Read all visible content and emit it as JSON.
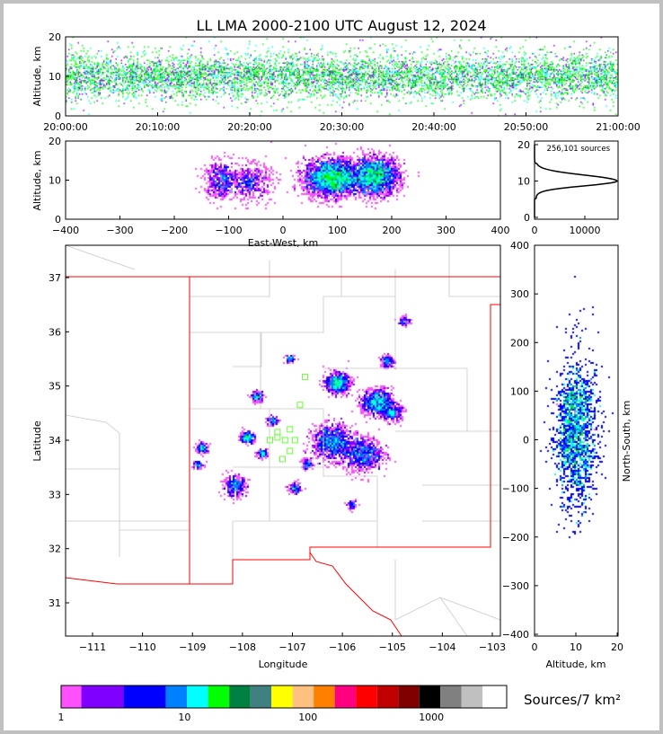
{
  "title": "LL LMA 2000-2100 UTC August 12, 2024",
  "colors": {
    "state_border": "#ff0000",
    "county_border": "#c8c8c8",
    "station": "#66ff33"
  },
  "chart_data": [
    {
      "type": "heatmap",
      "panel": "altitude-vs-time",
      "ylabel": "Altitude, km",
      "ylim": [
        0,
        20
      ],
      "yticks": [
        "0",
        "10",
        "20"
      ],
      "xticks": [
        "20:00:00",
        "20:10:00",
        "20:20:00",
        "20:30:00",
        "20:40:00",
        "20:50:00",
        "21:00:00"
      ],
      "band": {
        "center_km": 10,
        "spread_km": 3
      }
    },
    {
      "type": "heatmap",
      "panel": "altitude-vs-east-west",
      "xlabel": "East-West, km",
      "ylabel": "Altitude, km",
      "xlim": [
        -400,
        400
      ],
      "ylim": [
        0,
        20
      ],
      "xticks": [
        "−400",
        "−300",
        "−200",
        "−100",
        "0",
        "100",
        "200",
        "300",
        "400"
      ],
      "yticks": [
        "0",
        "10",
        "20"
      ],
      "clusters": [
        {
          "x": -115,
          "alt": 10,
          "sx": 15,
          "n": 500
        },
        {
          "x": -60,
          "alt": 9.5,
          "sx": 20,
          "n": 500
        },
        {
          "x": 90,
          "alt": 10.5,
          "sx": 25,
          "n": 2600
        },
        {
          "x": 170,
          "alt": 11,
          "sx": 22,
          "n": 2000
        }
      ]
    },
    {
      "type": "line",
      "panel": "altitude-histogram",
      "annotation": "256,101 sources",
      "xlim": [
        0,
        16500
      ],
      "ylim": [
        0,
        20
      ],
      "xticks": [
        "0",
        "10000"
      ],
      "yticks": [
        "0",
        "10",
        "20"
      ],
      "peak": {
        "altitude_km": 10,
        "count": 16000
      }
    },
    {
      "type": "heatmap",
      "panel": "plan-view-map",
      "xlabel": "Longitude",
      "ylabel": "Latitude",
      "xlim": [
        -111.54,
        -102.84
      ],
      "ylim": [
        30.38,
        37.6
      ],
      "xticks": [
        "−111",
        "−110",
        "−109",
        "−108",
        "−107",
        "−106",
        "−105",
        "−104",
        "−103"
      ],
      "yticks": [
        "31",
        "32",
        "33",
        "34",
        "35",
        "36",
        "37"
      ],
      "cells": [
        [
          -106.1,
          35.05,
          0.12,
          700
        ],
        [
          -105.3,
          34.7,
          0.15,
          900
        ],
        [
          -105.6,
          33.75,
          0.2,
          900
        ],
        [
          -106.2,
          33.95,
          0.2,
          1100
        ],
        [
          -107.9,
          34.05,
          0.07,
          250
        ],
        [
          -108.15,
          33.15,
          0.12,
          350
        ],
        [
          -108.8,
          33.85,
          0.06,
          150
        ],
        [
          -107.7,
          34.8,
          0.06,
          150
        ],
        [
          -106.95,
          33.1,
          0.06,
          120
        ],
        [
          -107.05,
          35.5,
          0.05,
          80
        ],
        [
          -105.1,
          35.45,
          0.07,
          150
        ],
        [
          -104.75,
          36.2,
          0.06,
          80
        ],
        [
          -105.8,
          32.8,
          0.05,
          60
        ],
        [
          -106.7,
          33.55,
          0.06,
          100
        ],
        [
          -107.6,
          33.75,
          0.05,
          120
        ],
        [
          -108.9,
          33.55,
          0.05,
          80
        ],
        [
          -107.4,
          34.35,
          0.06,
          100
        ],
        [
          -105.0,
          34.5,
          0.1,
          300
        ]
      ],
      "stations": [
        [
          -106.75,
          35.17
        ],
        [
          -106.85,
          34.65
        ],
        [
          -107.05,
          34.2
        ],
        [
          -107.3,
          34.05
        ],
        [
          -107.15,
          34.0
        ],
        [
          -107.2,
          33.65
        ],
        [
          -106.95,
          34.0
        ],
        [
          -107.45,
          34.0
        ],
        [
          -107.05,
          33.8
        ],
        [
          -107.3,
          34.15
        ]
      ]
    },
    {
      "type": "heatmap",
      "panel": "north-south-vs-altitude",
      "xlabel": "Altitude, km",
      "ylabel": "North-South, km",
      "xlim": [
        0,
        20
      ],
      "ylim": [
        -400,
        400
      ],
      "xticks": [
        "0",
        "10",
        "20"
      ],
      "yticks": [
        "−400",
        "−300",
        "−200",
        "−100",
        "0",
        "100",
        "200",
        "300",
        "400"
      ]
    },
    {
      "type": "colorbar",
      "label": "Sources/7 km²",
      "ticks": [
        "1",
        "10",
        "100",
        "1000"
      ],
      "scale": "log",
      "colors": [
        "#ff50ff",
        "#8000ff",
        "#0000ff",
        "#0080ff",
        "#00ffff",
        "#00ff00",
        "#008040",
        "#408080",
        "#ffff00",
        "#ffc080",
        "#ff8000",
        "#ff0080",
        "#ff0000",
        "#c00000",
        "#800000",
        "#000000",
        "#808080",
        "#c0c0c0",
        "#ffffff"
      ]
    }
  ]
}
